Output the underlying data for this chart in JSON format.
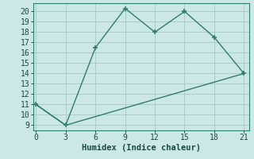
{
  "xlabel": "Humidex (Indice chaleur)",
  "bg_color": "#cce8e4",
  "grid_color": "#aaccca",
  "line_color": "#2e7d6e",
  "line1_x": [
    0,
    3,
    6,
    9,
    12,
    15,
    18,
    21
  ],
  "line1_y": [
    11,
    9,
    16.5,
    20.3,
    18,
    20,
    17.5,
    14
  ],
  "line2_x": [
    0,
    3,
    21
  ],
  "line2_y": [
    11,
    9,
    14
  ],
  "xlim": [
    -0.3,
    21.5
  ],
  "ylim": [
    8.5,
    20.8
  ],
  "xticks": [
    0,
    3,
    6,
    9,
    12,
    15,
    18,
    21
  ],
  "yticks": [
    9,
    10,
    11,
    12,
    13,
    14,
    15,
    16,
    17,
    18,
    19,
    20
  ],
  "font_family": "monospace",
  "xlabel_fontsize": 7.5,
  "tick_fontsize": 7.0
}
